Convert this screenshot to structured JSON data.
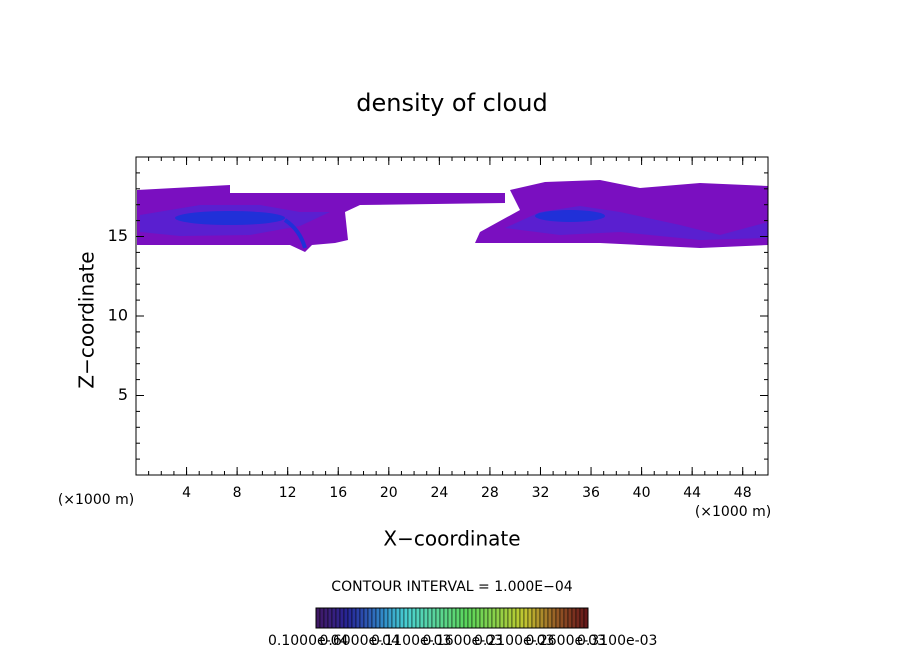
{
  "chart_data": {
    "type": "contour",
    "title": "density of cloud",
    "x_label": "X−coordinate",
    "y_label": "Z−coordinate",
    "x_unit": "(×1000 m)",
    "y_unit": "(×1000 m)",
    "xlim": [
      0,
      50
    ],
    "ylim": [
      0,
      20
    ],
    "xticks": [
      4,
      8,
      12,
      16,
      20,
      24,
      28,
      32,
      36,
      40,
      44,
      48
    ],
    "yticks": [
      5,
      10,
      15
    ],
    "contour_interval": "CONTOUR INTERVAL = 1.000E−04",
    "colorbar_labels": [
      "0.1000e-04",
      "0.6000e-04",
      "0.1100e-03",
      "0.1600e-03",
      "0.2100e-03",
      "0.2600e-03",
      "0.3100e-03"
    ]
  }
}
